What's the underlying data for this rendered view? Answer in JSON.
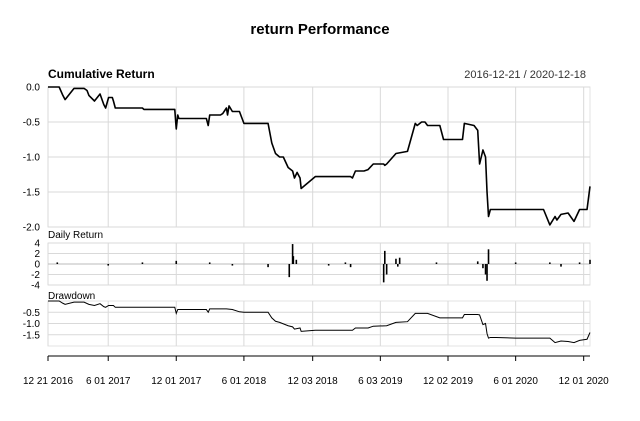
{
  "chart_data": {
    "type": "line",
    "title": "return Performance",
    "date_range": "2016-12-21 / 2020-12-18",
    "x_range": [
      "2016-12-21",
      "2020-12-18"
    ],
    "x_tick_labels": [
      {
        "label": "12 21 2016",
        "date": "2016-12-21"
      },
      {
        "label": "6 01 2017",
        "date": "2017-06-01"
      },
      {
        "label": "12 01 2017",
        "date": "2017-12-01"
      },
      {
        "label": "6 01 2018",
        "date": "2018-06-01"
      },
      {
        "label": "12 03 2018",
        "date": "2018-12-03"
      },
      {
        "label": "6 03 2019",
        "date": "2019-06-03"
      },
      {
        "label": "12 02 2019",
        "date": "2019-12-02"
      },
      {
        "label": "6 01 2020",
        "date": "2020-06-01"
      },
      {
        "label": "12 01 2020",
        "date": "2020-12-01"
      }
    ],
    "grid": true,
    "panels": [
      {
        "name": "Cumulative Return",
        "ylim": [
          -2.0,
          0.0
        ],
        "y_ticks": [
          {
            "label": "0.0",
            "value": 0.0
          },
          {
            "label": "-0.5",
            "value": -0.5
          },
          {
            "label": "-1.0",
            "value": -1.0
          },
          {
            "label": "-1.5",
            "value": -1.5
          },
          {
            "label": "-2.0",
            "value": -2.0
          }
        ],
        "series": [
          {
            "x": [
              "2016-12-21",
              "2017-01-20",
              "2017-01-30",
              "2017-02-05",
              "2017-03-01",
              "2017-03-28",
              "2017-04-05",
              "2017-04-10",
              "2017-04-25",
              "2017-05-10",
              "2017-05-20",
              "2017-05-25",
              "2017-06-02",
              "2017-06-12",
              "2017-06-15",
              "2017-06-20",
              "2017-08-01",
              "2017-09-01",
              "2017-09-05",
              "2017-11-27",
              "2017-12-01",
              "2017-12-05",
              "2017-12-08",
              "2018-01-15",
              "2018-02-20",
              "2018-02-25",
              "2018-03-01",
              "2018-03-30",
              "2018-04-05",
              "2018-04-15",
              "2018-04-18",
              "2018-04-22",
              "2018-05-01",
              "2018-05-20",
              "2018-06-01",
              "2018-06-05",
              "2018-08-05",
              "2018-08-15",
              "2018-08-25",
              "2018-09-05",
              "2018-09-15",
              "2018-09-28",
              "2018-10-10",
              "2018-10-15",
              "2018-10-22",
              "2018-10-30",
              "2018-11-02",
              "2018-12-10",
              "2019-01-25",
              "2019-02-01",
              "2019-03-15",
              "2019-03-20",
              "2019-03-28",
              "2019-04-20",
              "2019-05-01",
              "2019-05-15",
              "2019-06-12",
              "2019-06-15",
              "2019-06-20",
              "2019-07-15",
              "2019-08-15",
              "2019-09-05",
              "2019-09-10",
              "2019-09-22",
              "2019-10-01",
              "2019-10-08",
              "2019-11-10",
              "2019-11-20",
              "2019-11-25",
              "2020-01-10",
              "2020-01-15",
              "2020-02-10",
              "2020-02-20",
              "2020-02-25",
              "2020-03-05",
              "2020-03-12",
              "2020-03-16",
              "2020-03-20",
              "2020-03-25",
              "2020-04-01",
              "2020-04-10",
              "2020-06-01",
              "2020-08-15",
              "2020-09-01",
              "2020-09-15",
              "2020-09-20",
              "2020-10-01",
              "2020-10-20",
              "2020-11-05",
              "2020-11-20",
              "2020-12-01",
              "2020-12-10",
              "2020-12-18"
            ],
            "y": [
              0.0,
              0.0,
              -0.12,
              -0.18,
              -0.02,
              -0.02,
              -0.05,
              -0.12,
              -0.2,
              -0.1,
              -0.25,
              -0.3,
              -0.15,
              -0.15,
              -0.2,
              -0.3,
              -0.3,
              -0.3,
              -0.32,
              -0.32,
              -0.6,
              -0.4,
              -0.45,
              -0.45,
              -0.45,
              -0.55,
              -0.4,
              -0.4,
              -0.38,
              -0.3,
              -0.4,
              -0.27,
              -0.35,
              -0.35,
              -0.52,
              -0.52,
              -0.52,
              -0.8,
              -0.95,
              -1.0,
              -1.0,
              -1.15,
              -1.2,
              -1.3,
              -1.22,
              -1.3,
              -1.45,
              -1.28,
              -1.28,
              -1.28,
              -1.28,
              -1.3,
              -1.2,
              -1.2,
              -1.18,
              -1.1,
              -1.1,
              -1.12,
              -1.1,
              -0.95,
              -0.92,
              -0.52,
              -0.55,
              -0.5,
              -0.5,
              -0.55,
              -0.55,
              -0.75,
              -0.75,
              -0.75,
              -0.52,
              -0.55,
              -0.62,
              -1.1,
              -0.9,
              -1.0,
              -1.5,
              -1.85,
              -1.75,
              -1.75,
              -1.75,
              -1.75,
              -1.75,
              -1.97,
              -1.85,
              -1.9,
              -1.82,
              -1.8,
              -1.92,
              -1.75,
              -1.75,
              -1.75,
              -1.42
            ]
          }
        ]
      },
      {
        "name": "Daily Return",
        "ylim": [
          -4,
          4
        ],
        "y_ticks": [
          {
            "label": "4",
            "value": 4
          },
          {
            "label": "2",
            "value": 2
          },
          {
            "label": "0",
            "value": 0
          },
          {
            "label": "-2",
            "value": -2
          },
          {
            "label": "-4",
            "value": -4
          }
        ],
        "bars": {
          "x": [
            "2017-01-15",
            "2017-06-01",
            "2017-09-01",
            "2017-12-01",
            "2018-03-01",
            "2018-05-01",
            "2018-08-05",
            "2018-10-01",
            "2018-10-10",
            "2018-10-12",
            "2018-10-20",
            "2019-01-15",
            "2019-03-01",
            "2019-03-15",
            "2019-06-12",
            "2019-06-15",
            "2019-06-20",
            "2019-07-15",
            "2019-07-20",
            "2019-07-25",
            "2019-11-01",
            "2020-02-20",
            "2020-03-05",
            "2020-03-12",
            "2020-03-16",
            "2020-03-20",
            "2020-06-01",
            "2020-09-01",
            "2020-10-01",
            "2020-11-20",
            "2020-12-18"
          ],
          "values": [
            0.3,
            -0.3,
            0.3,
            0.6,
            0.3,
            -0.3,
            -0.6,
            -2.5,
            3.8,
            1.5,
            0.8,
            -0.3,
            0.3,
            -0.6,
            -3.5,
            2.5,
            -2.0,
            1.0,
            -0.5,
            1.2,
            0.3,
            0.5,
            -0.8,
            -2.0,
            -3.2,
            2.8,
            0.3,
            0.3,
            -0.5,
            0.3,
            0.8
          ]
        }
      },
      {
        "name": "Drawdown",
        "ylim": [
          -2.0,
          0.0
        ],
        "y_ticks": [
          {
            "label": "-0.5",
            "value": -0.5
          },
          {
            "label": "-1.0",
            "value": -1.0
          },
          {
            "label": "-1.5",
            "value": -1.5
          }
        ],
        "series": [
          {
            "x": [
              "2016-12-21",
              "2017-01-20",
              "2017-01-30",
              "2017-02-05",
              "2017-03-01",
              "2017-03-28",
              "2017-04-10",
              "2017-04-25",
              "2017-05-10",
              "2017-05-20",
              "2017-05-25",
              "2017-06-02",
              "2017-06-15",
              "2017-06-20",
              "2017-11-27",
              "2017-12-01",
              "2017-12-05",
              "2018-02-20",
              "2018-02-25",
              "2018-03-01",
              "2018-04-15",
              "2018-05-01",
              "2018-05-20",
              "2018-06-01",
              "2018-08-05",
              "2018-08-15",
              "2018-08-25",
              "2018-09-05",
              "2018-09-28",
              "2018-10-10",
              "2018-10-15",
              "2018-10-30",
              "2018-11-02",
              "2018-12-10",
              "2019-03-20",
              "2019-03-28",
              "2019-05-01",
              "2019-05-15",
              "2019-06-20",
              "2019-07-15",
              "2019-08-15",
              "2019-09-05",
              "2019-10-08",
              "2019-11-10",
              "2019-11-20",
              "2020-01-10",
              "2020-01-15",
              "2020-02-20",
              "2020-02-25",
              "2020-03-05",
              "2020-03-12",
              "2020-03-16",
              "2020-03-20",
              "2020-03-25",
              "2020-04-10",
              "2020-06-01",
              "2020-09-01",
              "2020-09-15",
              "2020-10-01",
              "2020-10-20",
              "2020-11-05",
              "2020-11-20",
              "2020-12-01",
              "2020-12-10",
              "2020-12-18"
            ],
            "y": [
              0.0,
              0.0,
              -0.1,
              -0.15,
              -0.05,
              -0.05,
              -0.15,
              -0.2,
              -0.12,
              -0.25,
              -0.28,
              -0.2,
              -0.2,
              -0.28,
              -0.28,
              -0.55,
              -0.38,
              -0.38,
              -0.5,
              -0.35,
              -0.35,
              -0.38,
              -0.48,
              -0.5,
              -0.5,
              -0.75,
              -0.9,
              -0.95,
              -1.1,
              -1.15,
              -1.25,
              -1.2,
              -1.35,
              -1.3,
              -1.3,
              -1.2,
              -1.2,
              -1.12,
              -1.1,
              -0.95,
              -0.92,
              -0.55,
              -0.55,
              -0.75,
              -0.75,
              -0.75,
              -0.6,
              -0.6,
              -0.62,
              -1.05,
              -1.0,
              -1.45,
              -1.65,
              -1.62,
              -1.62,
              -1.65,
              -1.65,
              -1.85,
              -1.78,
              -1.8,
              -1.85,
              -1.75,
              -1.72,
              -1.7,
              -1.4
            ]
          }
        ]
      }
    ]
  }
}
